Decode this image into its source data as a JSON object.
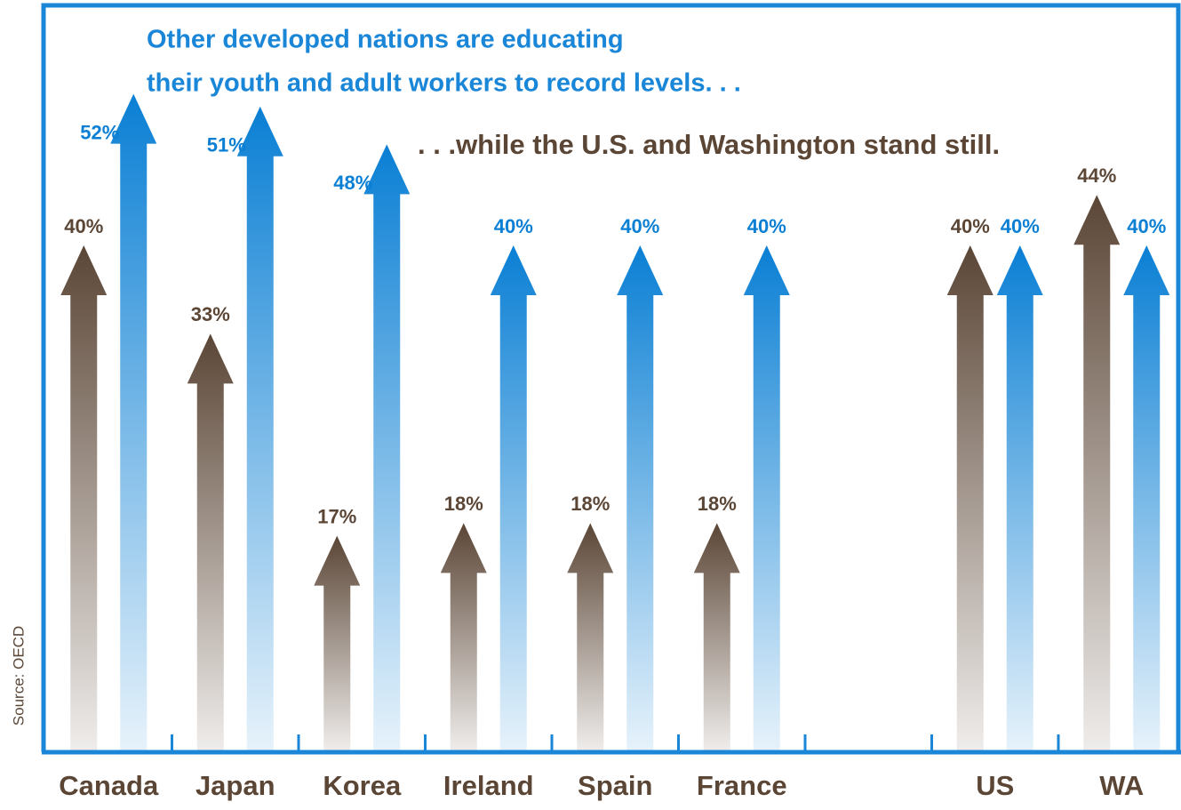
{
  "chart_data": {
    "type": "arrow-bar",
    "title": [
      "Other developed nations are educating",
      "their youth and adult workers to record levels. . ."
    ],
    "subtitle": ". . .while the U.S. and Washington stand still.",
    "source": "Source: OECD",
    "categories": [
      "Canada",
      "Japan",
      "Korea",
      "Ireland",
      "Spain",
      "France",
      null,
      "US",
      "WA"
    ],
    "series": [
      {
        "color": "#5b4636",
        "values": [
          40,
          33,
          17,
          18,
          18,
          18,
          null,
          40,
          44
        ],
        "value_labels": [
          "40%",
          "33%",
          "17%",
          "18%",
          "18%",
          "18%",
          null,
          "40%",
          "44%"
        ]
      },
      {
        "color": "#0a7fd4",
        "values": [
          52,
          51,
          48,
          40,
          40,
          40,
          null,
          40,
          40
        ],
        "value_labels": [
          "52%",
          "51%",
          "48%",
          "40%",
          "40%",
          "40%",
          null,
          "40%",
          "40%"
        ]
      }
    ]
  }
}
